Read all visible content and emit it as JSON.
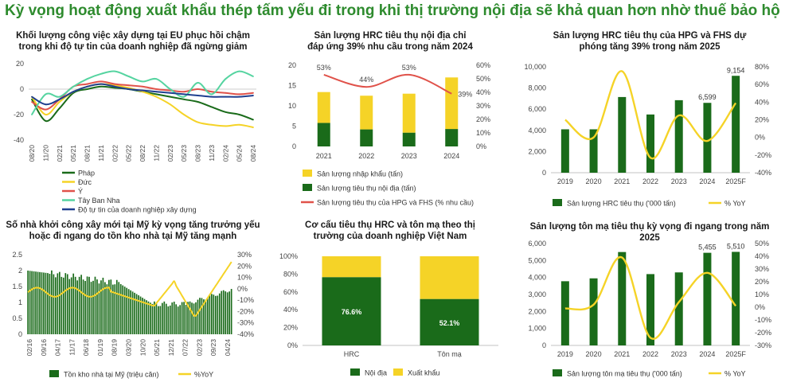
{
  "page": {
    "title": "Kỳ vọng hoạt động xuất khẩu thép tấm yếu đi trong khi thị trường nội địa sẽ khả quan hơn nhờ thuế bảo hộ"
  },
  "colors": {
    "dark_green": "#1a6b1a",
    "yellow": "#f5d327",
    "red": "#e0524a",
    "teal": "#55d4a0",
    "navy": "#1f3f8f",
    "title_green": "#2e8b2e"
  },
  "chart_data": [
    {
      "id": "eu",
      "type": "line",
      "title": "Khối lượng công việc xây dựng tại EU phục hồi chậm trong khi độ tự tin của doanh nghiệp đã ngừng giảm",
      "x_ticks": [
        "08/20",
        "11/20",
        "02/21",
        "05/21",
        "08/21",
        "11/21",
        "02/22",
        "05/22",
        "08/22",
        "11/22",
        "02/23",
        "05/23",
        "08/23",
        "11/23",
        "02/24",
        "05/24",
        "08/24"
      ],
      "y_ticks": [
        "20",
        "0",
        "-20",
        "-40"
      ],
      "ylim": [
        -40,
        20
      ],
      "series": [
        {
          "name": "Pháp",
          "color": "#1a6b1a",
          "values": [
            -8,
            -25,
            -15,
            -3,
            0,
            2,
            1,
            0,
            -2,
            -4,
            -6,
            -8,
            -10,
            -14,
            -18,
            -20,
            -24
          ]
        },
        {
          "name": "Đức",
          "color": "#f5d327",
          "values": [
            -6,
            -20,
            -10,
            -2,
            2,
            4,
            3,
            1,
            -2,
            -6,
            -12,
            -20,
            -26,
            -28,
            -29,
            -28,
            -30
          ]
        },
        {
          "name": "Ý",
          "color": "#e0524a",
          "values": [
            -10,
            -16,
            -8,
            2,
            4,
            6,
            4,
            3,
            2,
            0,
            -1,
            -2,
            0,
            -2,
            -3,
            -4,
            -3
          ]
        },
        {
          "name": "Tây Ban Nha",
          "color": "#55d4a0",
          "values": [
            -20,
            -4,
            -6,
            2,
            8,
            12,
            14,
            10,
            6,
            8,
            0,
            -6,
            5,
            -4,
            8,
            14,
            10
          ]
        },
        {
          "name": "Độ tự tin của doanh nghiệp xây dựng",
          "color": "#1f3f8f",
          "values": [
            -6,
            -12,
            -8,
            -2,
            2,
            4,
            2,
            0,
            -1,
            -2,
            -3,
            -4,
            -5,
            -6,
            -6,
            -6,
            -5
          ]
        }
      ],
      "legend_position": "bottom-left"
    },
    {
      "id": "hrc_domestic",
      "type": "bar",
      "title": "Sản lượng HRC tiêu thụ nội địa chỉ đáp ứng 39% nhu cầu trong năm 2024",
      "categories": [
        "2021",
        "2022",
        "2023",
        "2024"
      ],
      "ylim": [
        0,
        20
      ],
      "y_ticks": [
        "0",
        "5",
        "10",
        "15",
        "20"
      ],
      "y2_ticks": [
        "0%",
        "10%",
        "20%",
        "30%",
        "40%",
        "50%",
        "60%"
      ],
      "y2lim": [
        0,
        60
      ],
      "series": [
        {
          "name": "Sản lượng nhập khẩu (tấn)",
          "color": "#f5d327",
          "values": [
            7.6,
            8.3,
            9.6,
            12.7
          ]
        },
        {
          "name": "Sản lượng tiêu thụ nội địa (tấn)",
          "color": "#1a6b1a",
          "values": [
            5.8,
            4.2,
            3.4,
            4.3
          ]
        },
        {
          "name": "Sản lượng tiêu thụ của HPG và FHS (% nhu cầu)",
          "color": "#e0524a",
          "values": [
            53,
            44,
            53,
            39
          ],
          "axis": "right"
        }
      ],
      "data_labels": [
        "53%",
        "44%",
        "53%",
        "39%"
      ]
    },
    {
      "id": "hrc_hpg",
      "type": "bar",
      "title": "Sản lượng HRC tiêu thụ của HPG và FHS dự phóng tăng 39% trong năm 2025",
      "categories": [
        "2019",
        "2020",
        "2021",
        "2022",
        "2023",
        "2024",
        "2025F"
      ],
      "ylim": [
        0,
        10000
      ],
      "y_ticks": [
        "0",
        "2,000",
        "4,000",
        "6,000",
        "8,000",
        "10,000"
      ],
      "y2lim": [
        -40,
        80
      ],
      "y2_ticks": [
        "-40%",
        "-20%",
        "0%",
        "20%",
        "40%",
        "60%",
        "80%"
      ],
      "series": [
        {
          "name": "Sản lượng HRC tiêu thụ ('000 tấn)",
          "color": "#1a6b1a",
          "values": [
            4100,
            4100,
            7150,
            5500,
            6850,
            6599,
            9154
          ]
        },
        {
          "name": "% YoY",
          "color": "#f5d327",
          "values": [
            20,
            0,
            75,
            -23,
            25,
            -4,
            39
          ],
          "axis": "right"
        }
      ],
      "data_labels": {
        "2024": "6,599",
        "2025F": "9,154"
      }
    },
    {
      "id": "us_housing",
      "type": "bar",
      "title": "Số nhà khởi công xây mới tại Mỹ kỳ vọng tăng trưởng yếu hoặc đi ngang do tồn kho nhà tại Mỹ tăng mạnh",
      "x_ticks": [
        "02/16",
        "09/16",
        "04/17",
        "11/17",
        "06/18",
        "01/19",
        "08/19",
        "03/20",
        "10/20",
        "05/21",
        "12/21",
        "07/22",
        "02/23",
        "09/23",
        "04/24"
      ],
      "ylim": [
        0,
        2.5
      ],
      "y_ticks": [
        "0",
        "0.5",
        "1",
        "1.5",
        "2",
        "2.5"
      ],
      "y2lim": [
        -40,
        30
      ],
      "y2_ticks": [
        "-40%",
        "-30%",
        "-20%",
        "-10%",
        "0%",
        "10%",
        "20%",
        "30%"
      ],
      "series": [
        {
          "name": "Tồn kho nhà tại Mỹ (triệu căn)",
          "color": "#1a6b1a"
        },
        {
          "name": "%YoY",
          "color": "#f5d327"
        }
      ]
    },
    {
      "id": "consumption_structure",
      "type": "bar",
      "title": "Cơ cấu tiêu thụ HRC và tôn mạ theo thị trường của doanh nghiệp Việt Nam",
      "categories": [
        "HRC",
        "Tôn mạ"
      ],
      "ylim": [
        0,
        100
      ],
      "y_ticks": [
        "0%",
        "20%",
        "40%",
        "60%",
        "80%",
        "100%"
      ],
      "series": [
        {
          "name": "Nội địa",
          "color": "#1a6b1a",
          "values": [
            76.6,
            52.1
          ]
        },
        {
          "name": "Xuất khẩu",
          "color": "#f5d327",
          "values": [
            23.4,
            47.9
          ]
        }
      ],
      "data_labels": [
        "76.6%",
        "52.1%"
      ]
    },
    {
      "id": "galv_steel",
      "type": "bar",
      "title": "Sản lượng tôn mạ tiêu thụ kỳ vọng đi ngang trong năm 2025",
      "categories": [
        "2019",
        "2020",
        "2021",
        "2022",
        "2023",
        "2024",
        "2025F"
      ],
      "ylim": [
        0,
        6000
      ],
      "y_ticks": [
        "0",
        "1,000",
        "2,000",
        "3,000",
        "4,000",
        "5,000",
        "6,000"
      ],
      "y2lim": [
        -30,
        50
      ],
      "y2_ticks": [
        "-30%",
        "-20%",
        "-10%",
        "0%",
        "10%",
        "20%",
        "30%",
        "40%",
        "50%"
      ],
      "series": [
        {
          "name": "Sản lượng tôn mạ tiêu thụ ('000 tấn)",
          "color": "#1a6b1a",
          "values": [
            3780,
            3950,
            5500,
            4200,
            4300,
            5455,
            5510
          ]
        },
        {
          "name": "% YoY",
          "color": "#f5d327",
          "values": [
            -1,
            2,
            39,
            -24,
            4,
            27,
            1
          ],
          "axis": "right"
        }
      ],
      "data_labels": {
        "2024": "5,455",
        "2025F": "5,510"
      }
    }
  ]
}
